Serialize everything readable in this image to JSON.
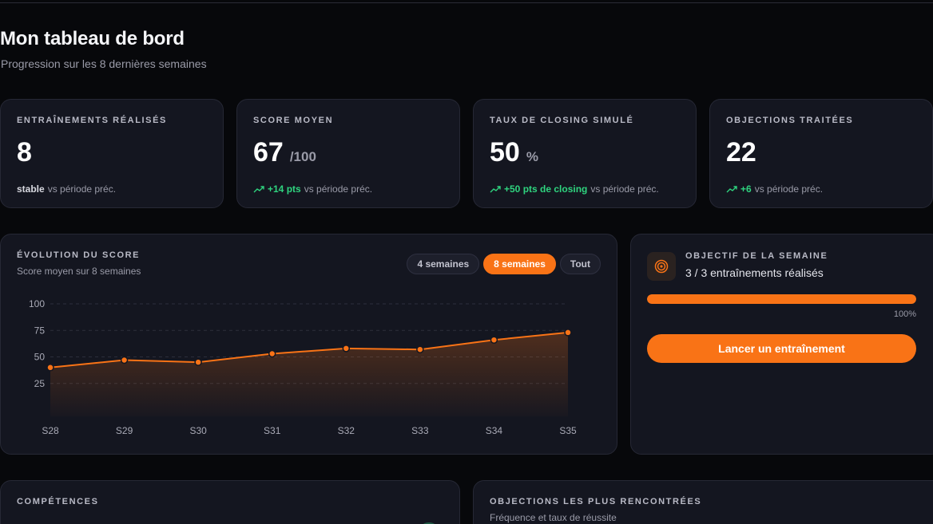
{
  "header": {
    "title": "Mon tableau de bord",
    "subtitle": "Progression sur les 8 dernières semaines"
  },
  "stats": [
    {
      "label": "ENTRAÎNEMENTS RÉALISÉS",
      "value": "8",
      "unit": "",
      "delta": "stable",
      "delta_positive": false,
      "suffix": "vs période préc."
    },
    {
      "label": "SCORE MOYEN",
      "value": "67",
      "unit": "/100",
      "delta": "+14 pts",
      "delta_positive": true,
      "suffix": "vs période préc."
    },
    {
      "label": "TAUX DE CLOSING SIMULÉ",
      "value": "50",
      "unit": "%",
      "delta": "+50 pts de closing",
      "delta_positive": true,
      "suffix": "vs période préc."
    },
    {
      "label": "OBJECTIONS TRAITÉES",
      "value": "22",
      "unit": "",
      "delta": "+6",
      "delta_positive": true,
      "suffix": "vs période préc."
    }
  ],
  "score_chart": {
    "title": "ÉVOLUTION DU SCORE",
    "subtitle": "Score moyen sur 8 semaines",
    "ranges": [
      "4 semaines",
      "8 semaines",
      "Tout"
    ],
    "active_range": "8 semaines"
  },
  "chart_data": {
    "type": "area",
    "title": "ÉVOLUTION DU SCORE",
    "subtitle": "Score moyen sur 8 semaines",
    "categories": [
      "S28",
      "S29",
      "S30",
      "S31",
      "S32",
      "S33",
      "S34",
      "S35"
    ],
    "values": [
      40,
      47,
      45,
      53,
      58,
      57,
      66,
      73
    ],
    "yticks": [
      25,
      50,
      75,
      100
    ],
    "ylim": [
      0,
      100
    ],
    "grid": true,
    "line_color": "#f97316"
  },
  "goal": {
    "title": "OBJECTIF DE LA SEMAINE",
    "subtitle": "3 / 3 entraînements réalisés",
    "progress": 1.0,
    "progress_label": "100%",
    "cta_label": "Lancer un entraînement",
    "icon": "target-icon"
  },
  "skills": {
    "title": "COMPÉTENCES"
  },
  "objections": {
    "title": "OBJECTIONS LES PLUS RENCONTRÉES",
    "subtitle": "Fréquence et taux de réussite"
  },
  "colors": {
    "accent": "#f97316",
    "positive": "#2fd47f",
    "background": "#07080b",
    "card": "#141620"
  }
}
